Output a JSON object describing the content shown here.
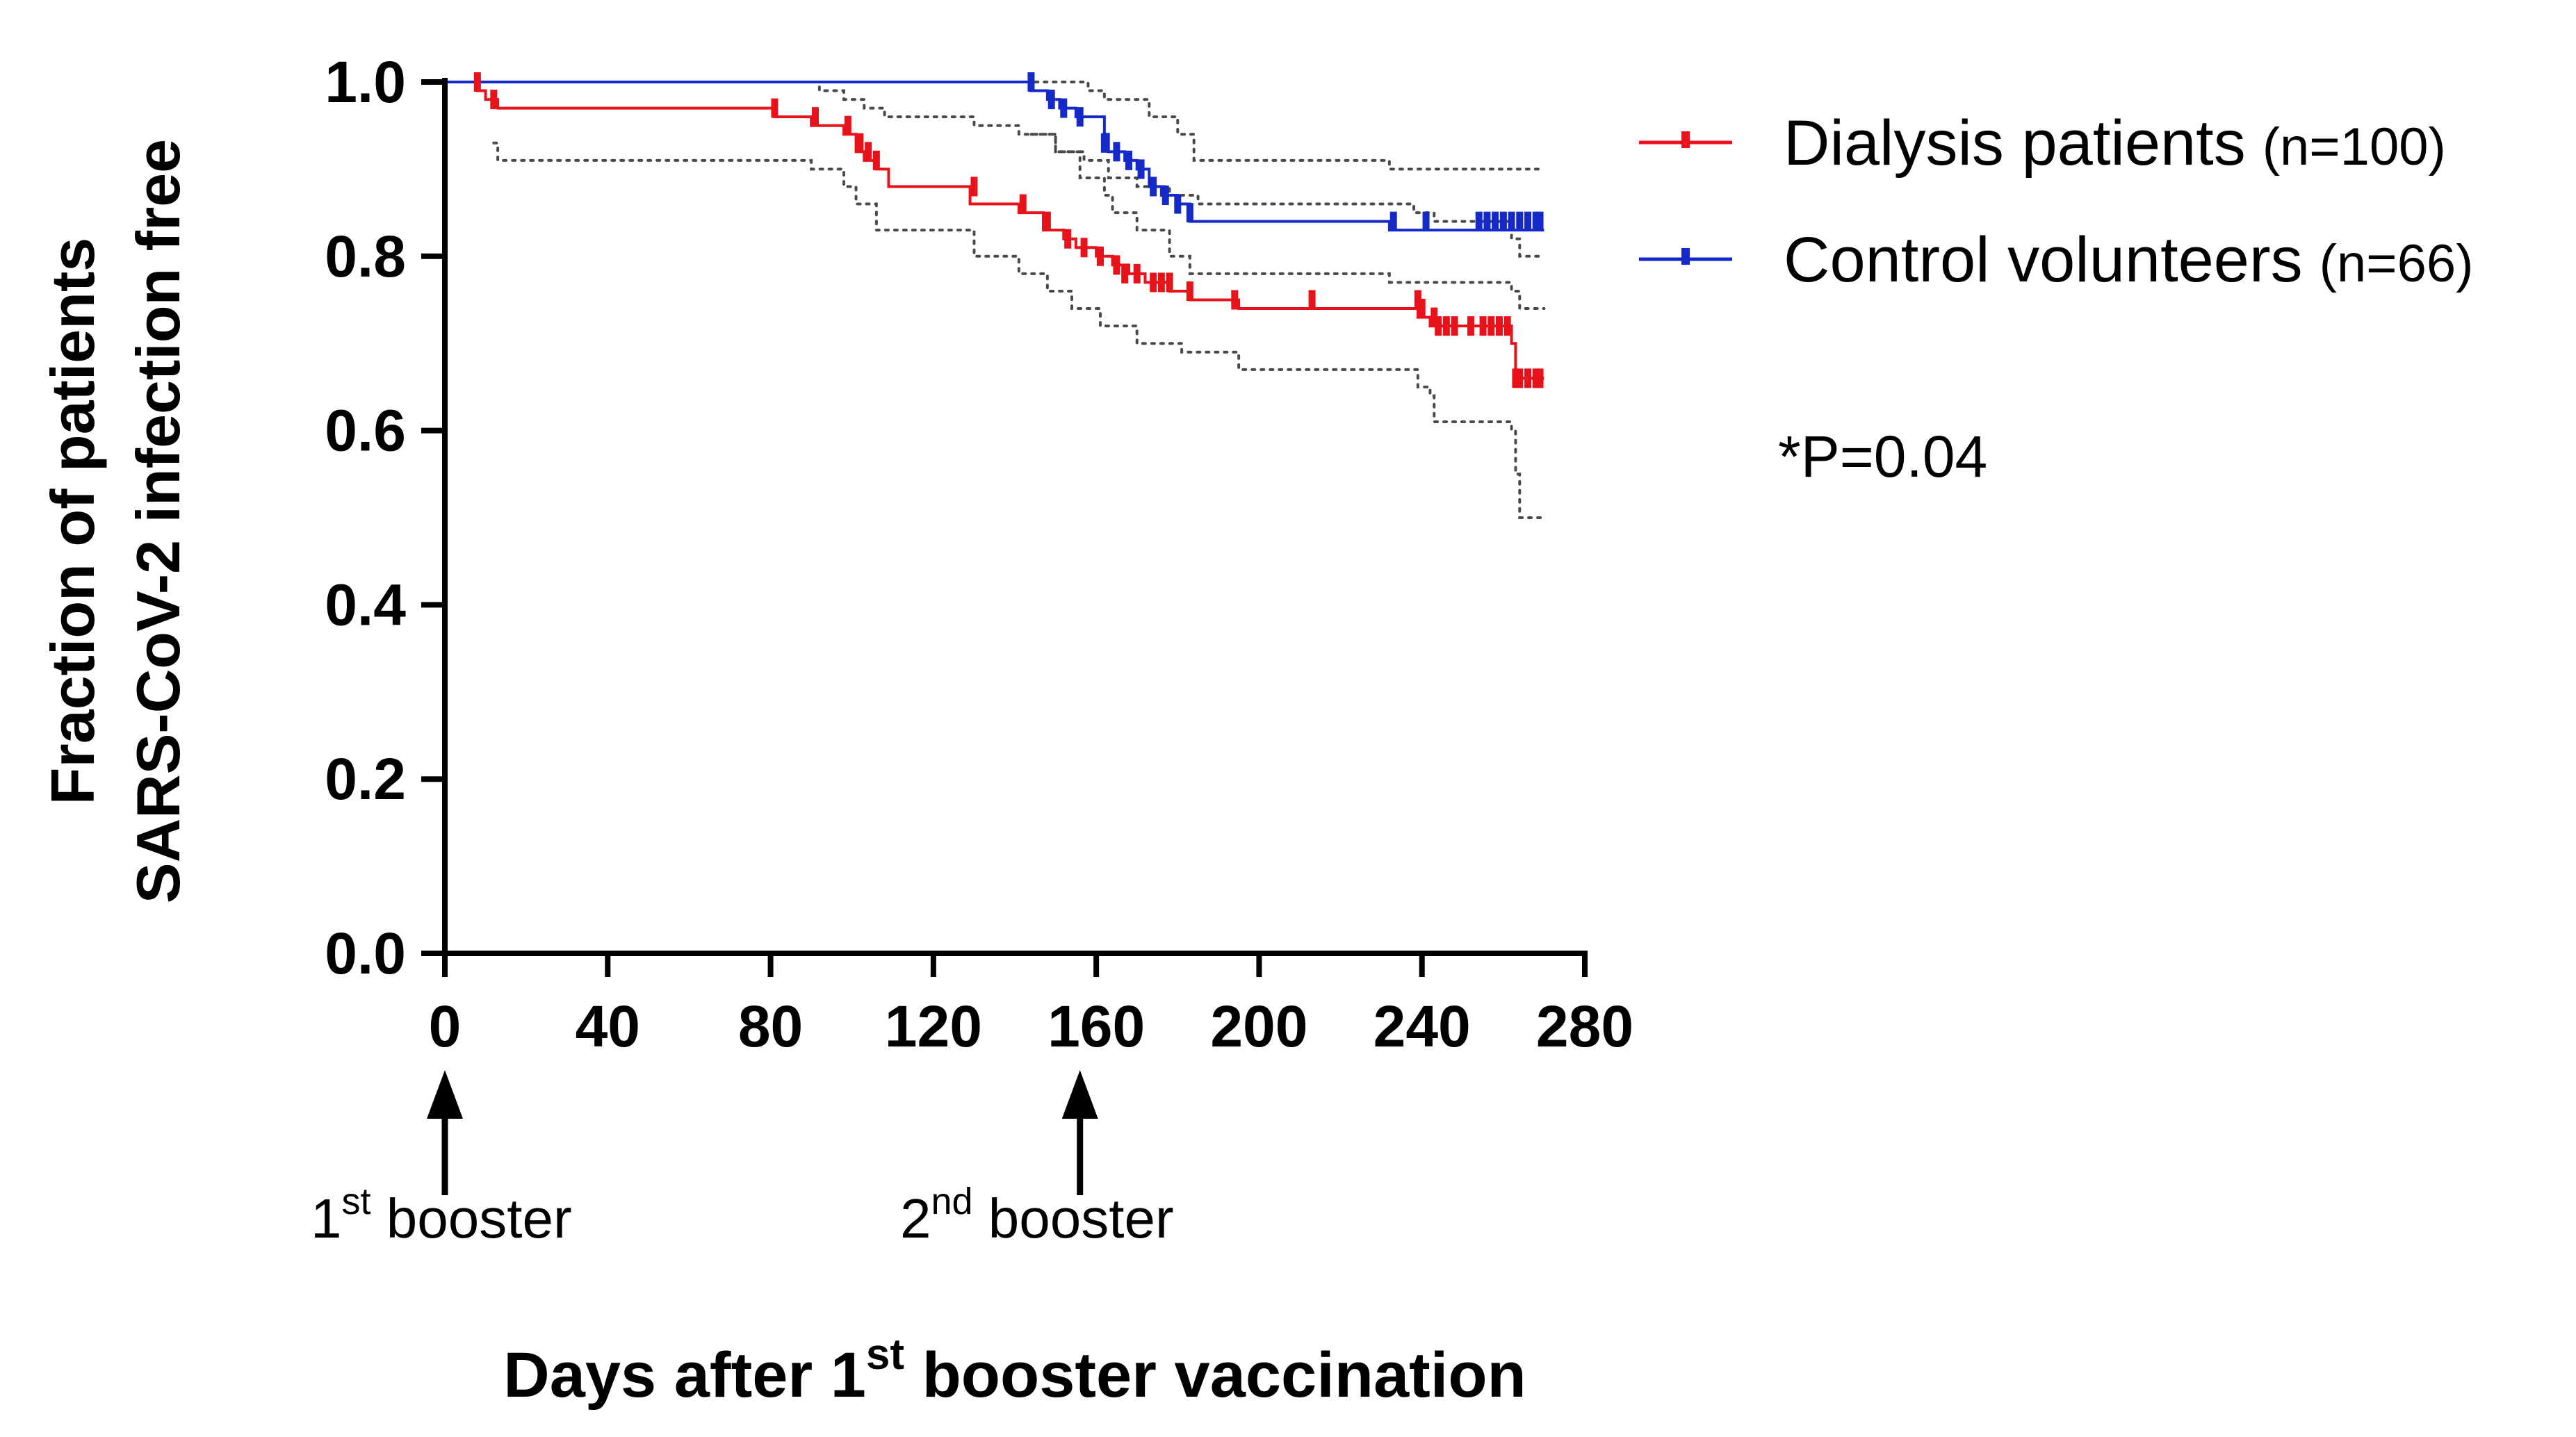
{
  "chart_data": {
    "type": "line",
    "subtype": "kaplan-meier",
    "ylabel_lines": [
      "Fraction of patients",
      "SARS-CoV-2  infection free"
    ],
    "xlabel": {
      "prefix": "Days after 1",
      "sup": "st",
      "suffix": " booster vaccination"
    },
    "xlim": [
      0,
      280
    ],
    "ylim": [
      0,
      1
    ],
    "x_ticks": [
      0,
      40,
      80,
      120,
      160,
      200,
      240,
      280
    ],
    "x_tick_labels": [
      "0",
      "40",
      "80",
      "120",
      "160",
      "200",
      "240",
      "280"
    ],
    "y_ticks": [
      0,
      0.2,
      0.4,
      0.6,
      0.8,
      1.0
    ],
    "y_tick_labels": [
      "0.0",
      "0.2",
      "0.4",
      "0.6",
      "0.8",
      "1.0"
    ],
    "series": [
      {
        "name": "Dialysis patients",
        "n_label": "(n=100)",
        "color": "#e8121b",
        "steps": [
          [
            0,
            1.0
          ],
          [
            8,
            0.99
          ],
          [
            10,
            0.98
          ],
          [
            13,
            0.97
          ],
          [
            81,
            0.96
          ],
          [
            90,
            0.95
          ],
          [
            98,
            0.94
          ],
          [
            101,
            0.92
          ],
          [
            103,
            0.91
          ],
          [
            106,
            0.9
          ],
          [
            109,
            0.88
          ],
          [
            129,
            0.86
          ],
          [
            141,
            0.85
          ],
          [
            147,
            0.83
          ],
          [
            152,
            0.82
          ],
          [
            155,
            0.81
          ],
          [
            160,
            0.8
          ],
          [
            164,
            0.79
          ],
          [
            168,
            0.78
          ],
          [
            172,
            0.77
          ],
          [
            178,
            0.76
          ],
          [
            183,
            0.75
          ],
          [
            195,
            0.74
          ],
          [
            239,
            0.73
          ],
          [
            242,
            0.72
          ],
          [
            262,
            0.7
          ],
          [
            263,
            0.66
          ],
          [
            270,
            0.66
          ]
        ],
        "censored": [
          [
            8,
            1.0
          ],
          [
            12,
            0.98
          ],
          [
            81,
            0.97
          ],
          [
            91,
            0.96
          ],
          [
            99,
            0.95
          ],
          [
            102,
            0.93
          ],
          [
            104,
            0.92
          ],
          [
            106,
            0.91
          ],
          [
            130,
            0.88
          ],
          [
            142,
            0.86
          ],
          [
            148,
            0.84
          ],
          [
            153,
            0.82
          ],
          [
            157,
            0.81
          ],
          [
            161,
            0.8
          ],
          [
            165,
            0.79
          ],
          [
            167,
            0.78
          ],
          [
            170,
            0.78
          ],
          [
            174,
            0.77
          ],
          [
            176,
            0.77
          ],
          [
            178,
            0.77
          ],
          [
            183,
            0.76
          ],
          [
            194,
            0.75
          ],
          [
            213,
            0.75
          ],
          [
            239,
            0.75
          ],
          [
            240,
            0.74
          ],
          [
            243,
            0.73
          ],
          [
            244,
            0.72
          ],
          [
            246,
            0.72
          ],
          [
            248,
            0.72
          ],
          [
            252,
            0.72
          ],
          [
            255,
            0.72
          ],
          [
            257,
            0.72
          ],
          [
            259,
            0.72
          ],
          [
            261,
            0.72
          ],
          [
            263,
            0.66
          ],
          [
            264,
            0.66
          ],
          [
            266,
            0.66
          ],
          [
            268,
            0.66
          ],
          [
            269,
            0.66
          ]
        ],
        "ci_upper": [
          [
            0,
            1.0
          ],
          [
            80,
            1.0
          ],
          [
            92,
            0.99
          ],
          [
            98,
            0.98
          ],
          [
            103,
            0.97
          ],
          [
            108,
            0.96
          ],
          [
            130,
            0.95
          ],
          [
            141,
            0.94
          ],
          [
            150,
            0.92
          ],
          [
            157,
            0.91
          ],
          [
            163,
            0.89
          ],
          [
            170,
            0.88
          ],
          [
            178,
            0.87
          ],
          [
            185,
            0.86
          ],
          [
            238,
            0.85
          ],
          [
            243,
            0.84
          ],
          [
            262,
            0.82
          ],
          [
            264,
            0.8
          ],
          [
            270,
            0.8
          ]
        ],
        "ci_lower": [
          [
            12,
            0.93
          ],
          [
            13,
            0.91
          ],
          [
            82,
            0.91
          ],
          [
            90,
            0.9
          ],
          [
            98,
            0.88
          ],
          [
            101,
            0.86
          ],
          [
            106,
            0.83
          ],
          [
            130,
            0.8
          ],
          [
            141,
            0.78
          ],
          [
            148,
            0.76
          ],
          [
            154,
            0.74
          ],
          [
            161,
            0.72
          ],
          [
            170,
            0.7
          ],
          [
            181,
            0.69
          ],
          [
            195,
            0.67
          ],
          [
            239,
            0.65
          ],
          [
            242,
            0.64
          ],
          [
            243,
            0.61
          ],
          [
            262,
            0.6
          ],
          [
            263,
            0.55
          ],
          [
            264,
            0.5
          ],
          [
            270,
            0.5
          ]
        ]
      },
      {
        "name": "Control volunteers",
        "n_label": "(n=66)",
        "color": "#1528c8",
        "steps": [
          [
            0,
            1.0
          ],
          [
            144,
            0.99
          ],
          [
            148,
            0.98
          ],
          [
            151,
            0.97
          ],
          [
            155,
            0.96
          ],
          [
            162,
            0.94
          ],
          [
            163,
            0.92
          ],
          [
            167,
            0.91
          ],
          [
            170,
            0.9
          ],
          [
            173,
            0.88
          ],
          [
            176,
            0.87
          ],
          [
            180,
            0.86
          ],
          [
            183,
            0.84
          ],
          [
            232,
            0.83
          ],
          [
            270,
            0.83
          ]
        ],
        "censored": [
          [
            144,
            1.0
          ],
          [
            149,
            0.98
          ],
          [
            152,
            0.97
          ],
          [
            156,
            0.96
          ],
          [
            162,
            0.93
          ],
          [
            165,
            0.92
          ],
          [
            168,
            0.91
          ],
          [
            171,
            0.9
          ],
          [
            174,
            0.88
          ],
          [
            177,
            0.87
          ],
          [
            180,
            0.86
          ],
          [
            183,
            0.85
          ],
          [
            233,
            0.84
          ],
          [
            241,
            0.84
          ],
          [
            254,
            0.84
          ],
          [
            256,
            0.84
          ],
          [
            258,
            0.84
          ],
          [
            260,
            0.84
          ],
          [
            262,
            0.84
          ],
          [
            264,
            0.84
          ],
          [
            266,
            0.84
          ],
          [
            268,
            0.84
          ],
          [
            269,
            0.84
          ]
        ],
        "ci_upper": [
          [
            145,
            1.0
          ],
          [
            158,
            0.99
          ],
          [
            162,
            0.98
          ],
          [
            173,
            0.96
          ],
          [
            180,
            0.94
          ],
          [
            184,
            0.91
          ],
          [
            232,
            0.9
          ],
          [
            270,
            0.9
          ]
        ],
        "ci_lower": [
          [
            144,
            0.94
          ],
          [
            150,
            0.92
          ],
          [
            156,
            0.89
          ],
          [
            162,
            0.87
          ],
          [
            164,
            0.85
          ],
          [
            170,
            0.83
          ],
          [
            178,
            0.8
          ],
          [
            183,
            0.78
          ],
          [
            232,
            0.77
          ],
          [
            262,
            0.76
          ],
          [
            264,
            0.74
          ],
          [
            270,
            0.74
          ]
        ]
      }
    ],
    "annotations": {
      "pvalue": "*P=0.04",
      "booster_arrows": [
        {
          "x": 0,
          "num": "1",
          "sup": "st",
          "text": " booster"
        },
        {
          "x": 156,
          "num": "2",
          "sup": "nd",
          "text": " booster"
        }
      ]
    }
  }
}
